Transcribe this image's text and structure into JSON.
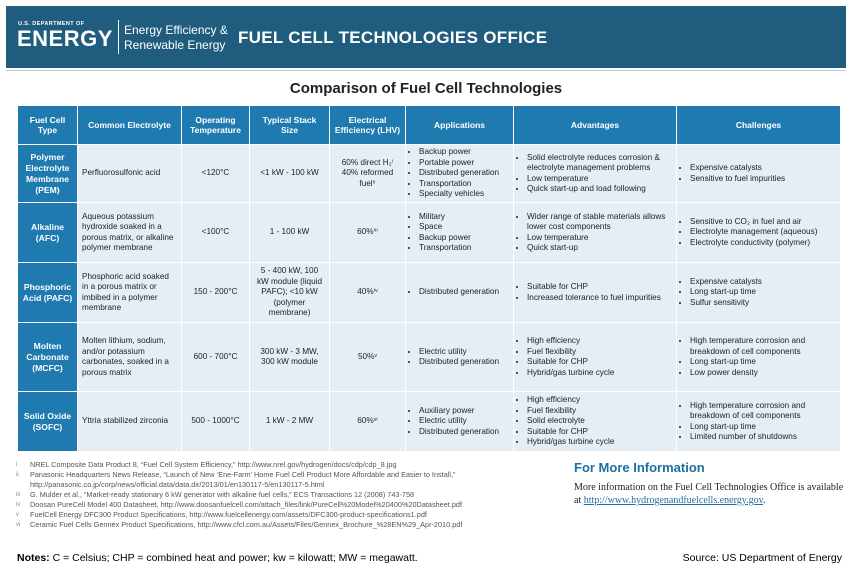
{
  "header": {
    "doe_small": "U.S. DEPARTMENT OF",
    "doe_big": "ENERGY",
    "eere_line1": "Energy Efficiency &",
    "eere_line2": "Renewable Energy",
    "office": "FUEL CELL TECHNOLOGIES OFFICE",
    "colors": {
      "banner": "#1f5c7e",
      "table_header": "#1f7ab0",
      "cell": "#e5eef5",
      "link": "#1f6fa0"
    }
  },
  "title": "Comparison of Fuel Cell Technologies",
  "columns": [
    "Fuel Cell Type",
    "Common Electrolyte",
    "Operating Temperature",
    "Typical Stack Size",
    "Electrical Efficiency (LHV)",
    "Applications",
    "Advantages",
    "Challenges"
  ],
  "rows": [
    {
      "type": "Polymer Electrolyte Membrane (PEM)",
      "electrolyte": "Perfluorosulfonic acid",
      "temperature": "<120°C",
      "stack": "<1 kW - 100 kW",
      "efficiency_1": "60% direct H₂ⁱ",
      "efficiency_2": "40% reformed fuelⁱⁱ",
      "applications": [
        "Backup power",
        "Portable power",
        "Distributed generation",
        "Transportation",
        "Specialty vehicles"
      ],
      "advantages": [
        "Solid electrolyte reduces corrosion & electrolyte management problems",
        "Low temperature",
        "Quick start-up and load following"
      ],
      "challenges": [
        "Expensive catalysts",
        "Sensitive to fuel impurities"
      ]
    },
    {
      "type": "Alkaline (AFC)",
      "electrolyte": "Aqueous potassium hydroxide soaked in a porous matrix, or alkaline polymer membrane",
      "temperature": "<100°C",
      "stack": "1 - 100 kW",
      "efficiency_1": "60%ⁱⁱⁱ",
      "efficiency_2": "",
      "applications": [
        "Military",
        "Space",
        "Backup power",
        "Transportation"
      ],
      "advantages": [
        "Wider range of stable materials allows lower cost components",
        "Low temperature",
        "Quick start-up"
      ],
      "challenges": [
        "Sensitive to CO₂ in fuel and air",
        "Electrolyte management (aqueous)",
        "Electrolyte conductivity (polymer)"
      ]
    },
    {
      "type": "Phosphoric Acid (PAFC)",
      "electrolyte": "Phosphoric acid soaked in a porous matrix or imbibed in a polymer membrane",
      "temperature": "150 - 200°C",
      "stack": "5 - 400 kW, 100 kW module (liquid PAFC); <10 kW (polymer membrane)",
      "efficiency_1": "40%ⁱᵛ",
      "efficiency_2": "",
      "applications": [
        "Distributed generation"
      ],
      "advantages": [
        "Suitable for CHP",
        "Increased tolerance to fuel impurities"
      ],
      "challenges": [
        "Expensive catalysts",
        "Long start-up time",
        "Sulfur sensitivity"
      ]
    },
    {
      "type": "Molten Carbonate (MCFC)",
      "electrolyte": "Molten lithium, sodium, and/or potassium carbonates, soaked in a porous matrix",
      "temperature": "600 - 700°C",
      "stack": "300 kW - 3 MW, 300 kW module",
      "efficiency_1": "50%ᵛ",
      "efficiency_2": "",
      "applications": [
        "Electric utility",
        "Distributed generation"
      ],
      "advantages": [
        "High efficiency",
        "Fuel flexibility",
        "Suitable for CHP",
        "Hybrid/gas turbine cycle"
      ],
      "challenges": [
        "High temperature corrosion and breakdown of cell components",
        "Long start-up time",
        "Low power density"
      ]
    },
    {
      "type": "Solid Oxide (SOFC)",
      "electrolyte": "Yttria stabilized zirconia",
      "temperature": "500 - 1000°C",
      "stack": "1 kW - 2 MW",
      "efficiency_1": "60%ᵛⁱ",
      "efficiency_2": "",
      "applications": [
        "Auxiliary power",
        "Electric utility",
        "Distributed generation"
      ],
      "advantages": [
        "High efficiency",
        "Fuel flexibility",
        "Solid electrolyte",
        "Suitable for CHP",
        "Hybrid/gas turbine cycle"
      ],
      "challenges": [
        "High temperature corrosion and breakdown of cell components",
        "Long start-up time",
        "Limited number of shutdowns"
      ]
    }
  ],
  "references": [
    {
      "num": "i",
      "text": "NREL Composite Data Product 8, “Fuel Cell System Efficiency,” http://www.nrel.gov/hydrogen/docs/cdp/cdp_8.jpg"
    },
    {
      "num": "ii",
      "text": "Panasonic Headquarters News Release, “Launch of New ‘Ene-Farm’ Home Fuel Cell Product More Affordable and Easier to Install,”"
    },
    {
      "num": "",
      "text": "http://panasonic.co.jp/corp/news/official.data/data.dir/2013/01/en130117-5/en130117-5.html"
    },
    {
      "num": "iii",
      "text": "G. Mulder et al., “Market-ready stationary 6 kW generator with alkaline fuel cells,” ECS Transactions 12 (2008) 743-758"
    },
    {
      "num": "iv",
      "text": "Doosan PureCell Model 400 Datasheet, http://www.doosanfuelcell.com/attach_files/link/PureCell%20Model%20400%20Datasheet.pdf"
    },
    {
      "num": "v",
      "text": "FuelCell Energy DFC300 Product Specifications, http://www.fuelcellenergy.com/assets/DFC300-product-specifications1.pdf"
    },
    {
      "num": "vi",
      "text": "Ceramic Fuel Cells Gennex Product Specifications, http://www.cfcl.com.au/Assets/Files/Gennex_Brochure_%28EN%29_Apr-2010.pdf"
    }
  ],
  "more_info": {
    "title": "For More Information",
    "text": "More information on the Fuel Cell Technologies Office is available at",
    "link": "http://www.hydrogenandfuelcells.energy.gov",
    "period": "."
  },
  "notes": {
    "label": "Notes:",
    "text": " C = Celsius; CHP = combined heat and power; kw = kilowatt; MW = megawatt."
  },
  "source": "Source: US Department of Energy"
}
